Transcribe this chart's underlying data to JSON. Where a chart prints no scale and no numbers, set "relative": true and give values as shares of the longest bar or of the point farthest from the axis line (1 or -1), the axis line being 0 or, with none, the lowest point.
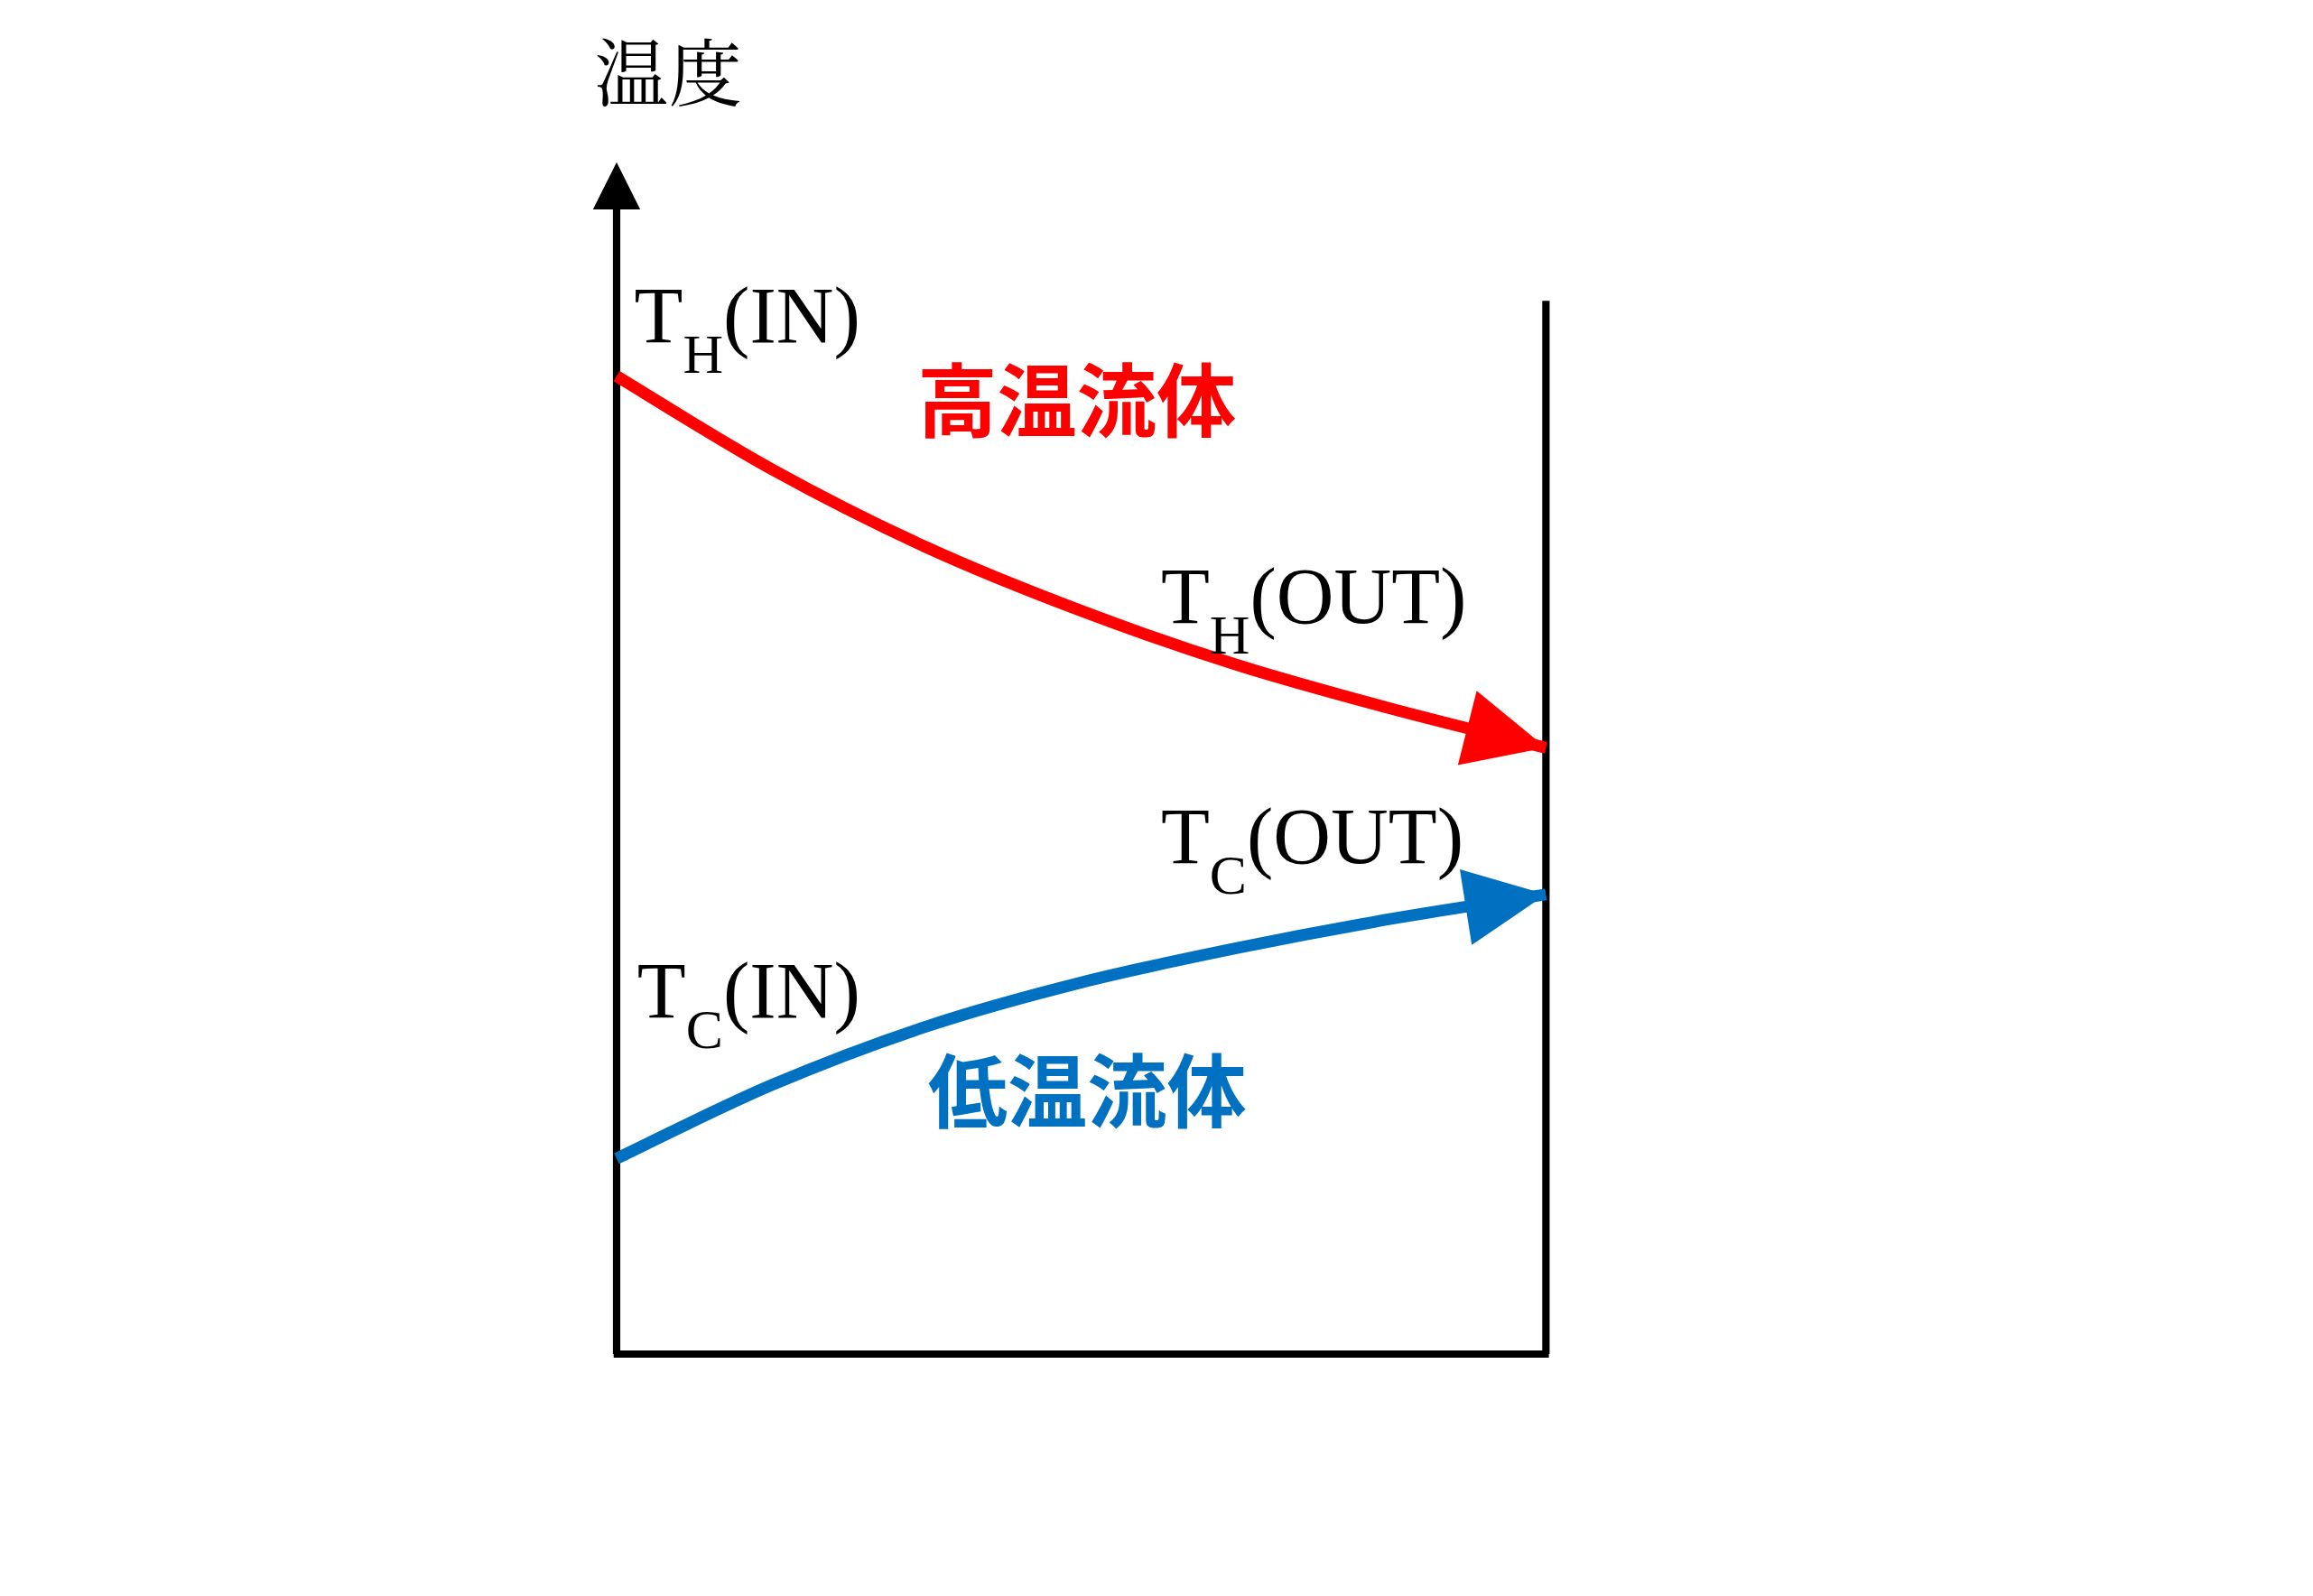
{
  "chart_data": {
    "type": "line",
    "ylabel": "温度",
    "relative": true,
    "categories": [
      null,
      null,
      null,
      null,
      null,
      null,
      null
    ],
    "series": [
      {
        "name": "高温流体",
        "color": "#ff0000",
        "values": [
          1.0,
          0.905,
          0.825,
          0.76,
          0.705,
          0.66,
          0.62
        ]
      },
      {
        "name": "低温流体",
        "color": "#0070c0",
        "values": [
          0.2,
          0.275,
          0.335,
          0.38,
          0.415,
          0.445,
          0.47
        ]
      }
    ],
    "annotations": [
      "T$_{H}$(IN)",
      "T$_{H}$(OUT)",
      "T$_{C}$(OUT)",
      "T$_{C}$(IN)"
    ]
  }
}
